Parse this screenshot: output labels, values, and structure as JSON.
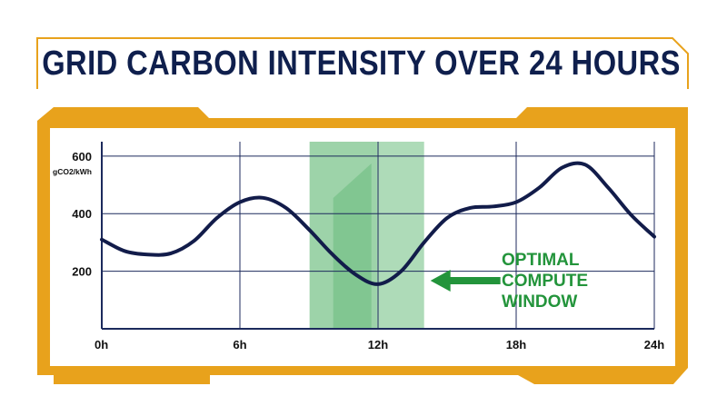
{
  "title": "GRID CARBON INTENSITY OVER 24 HOURS",
  "colors": {
    "frame_accent": "#e8a21c",
    "title_text": "#0f1f4d",
    "line": "#121c4a",
    "grid": "#1c2a5c",
    "highlight": "#4caf63",
    "annotation": "#23943b"
  },
  "chart_data": {
    "type": "line",
    "title": "GRID CARBON INTENSITY OVER 24 HOURS",
    "xlabel": "",
    "ylabel": "gCO2/kWh",
    "xlim": [
      0,
      24
    ],
    "ylim": [
      0,
      600
    ],
    "x_ticks": [
      {
        "value": 0,
        "label": "0h"
      },
      {
        "value": 6,
        "label": "6h"
      },
      {
        "value": 12,
        "label": "12h"
      },
      {
        "value": 18,
        "label": "18h"
      },
      {
        "value": 24,
        "label": "24h"
      }
    ],
    "y_ticks": [
      {
        "value": 200,
        "label": "200"
      },
      {
        "value": 400,
        "label": "400"
      },
      {
        "value": 600,
        "label": "600"
      }
    ],
    "grid": true,
    "series": [
      {
        "x": [
          0,
          1,
          2,
          3,
          4,
          5,
          6,
          7,
          8,
          9,
          10,
          11,
          12,
          13,
          14,
          15,
          16,
          17,
          18,
          19,
          20,
          21,
          22,
          23,
          24
        ],
        "values": [
          310,
          270,
          258,
          262,
          305,
          385,
          440,
          455,
          420,
          345,
          260,
          190,
          155,
          200,
          300,
          385,
          420,
          425,
          440,
          490,
          560,
          570,
          490,
          395,
          320
        ]
      }
    ],
    "highlight_band": {
      "x_start": 9.5,
      "x_end": 14
    },
    "annotation": {
      "text_lines": [
        "OPTIMAL",
        "COMPUTE",
        "WINDOW"
      ],
      "target_x": 14
    }
  }
}
